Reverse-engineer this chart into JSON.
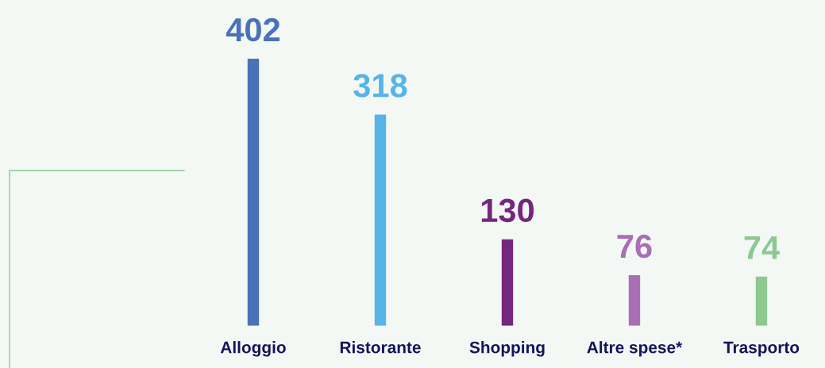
{
  "chart_data": {
    "type": "bar",
    "categories": [
      "Alloggio",
      "Ristorante",
      "Shopping",
      "Altre spese*",
      "Trasporto"
    ],
    "values": [
      402,
      318,
      130,
      76,
      74
    ],
    "colors": [
      "#4a72b8",
      "#56b4e6",
      "#76267f",
      "#a86fb5",
      "#8dc891"
    ],
    "data_labels": true,
    "grid": false,
    "legend": false
  }
}
